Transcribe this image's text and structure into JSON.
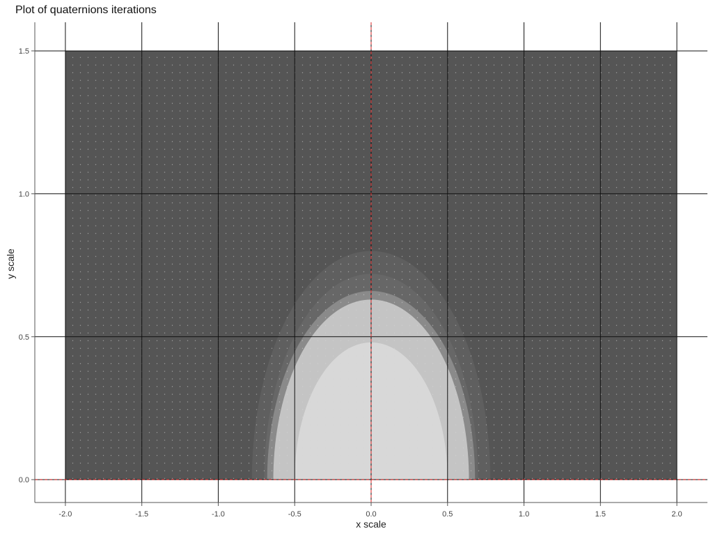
{
  "chart_data": {
    "type": "heatmap",
    "title": "Plot of quaternions iterations",
    "xlabel": "x scale",
    "ylabel": "y scale",
    "xlim": [
      -2.2,
      2.2
    ],
    "ylim": [
      -0.08,
      1.6
    ],
    "x_ticks": [
      "-2.0",
      "-1.5",
      "-1.0",
      "-0.5",
      "0.0",
      "0.5",
      "1.0",
      "1.5",
      "2.0"
    ],
    "y_ticks": [
      "0.0",
      "0.5",
      "1.0",
      "1.5"
    ],
    "x_tick_values": [
      -2.0,
      -1.5,
      -1.0,
      -0.5,
      0.0,
      0.5,
      1.0,
      1.5,
      2.0
    ],
    "y_tick_values": [
      0.0,
      0.5,
      1.0,
      1.5
    ],
    "grid": true,
    "reference_lines": [
      {
        "orientation": "vertical",
        "value": 0.0,
        "color": "#dd2222",
        "style": "dashed"
      },
      {
        "orientation": "horizontal",
        "value": 0.0,
        "color": "#dd2222",
        "style": "dashed"
      }
    ],
    "data_extent": {
      "x": [
        -2.0,
        2.0
      ],
      "y": [
        0.0,
        1.5
      ]
    },
    "regions": [
      {
        "level": "background",
        "fill": "#555555"
      },
      {
        "level": "outer-ring",
        "center_x": 0.0,
        "half_width": 0.78,
        "height": 0.8,
        "fill": "#5f5f5f"
      },
      {
        "level": "middle-ring",
        "center_x": 0.0,
        "half_width": 0.7,
        "height": 0.72,
        "fill": "#676767"
      },
      {
        "level": "inner-ring",
        "center_x": 0.0,
        "half_width": 0.68,
        "height": 0.66,
        "fill": "#8a8a8a"
      },
      {
        "level": "core",
        "center_x": 0.0,
        "half_width": 0.64,
        "height": 0.63,
        "fill": "#c4c4c4"
      },
      {
        "level": "bright-core",
        "center_x": 0.0,
        "half_width": 0.5,
        "height": 0.48,
        "fill": "#d8d8d8"
      }
    ]
  }
}
